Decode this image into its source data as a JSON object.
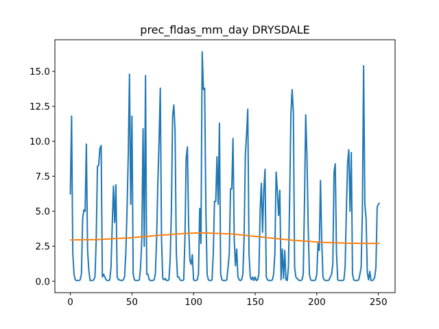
{
  "chart_data": {
    "type": "line",
    "title": "prec_fldas_mm_day DRYSDALE",
    "x": [
      0,
      1,
      2,
      3,
      4,
      5,
      6,
      7,
      8,
      9,
      10,
      11,
      12,
      13,
      14,
      15,
      16,
      17,
      18,
      19,
      20,
      21,
      22,
      23,
      24,
      25,
      26,
      27,
      28,
      29,
      30,
      31,
      32,
      33,
      34,
      35,
      36,
      37,
      38,
      39,
      40,
      41,
      42,
      43,
      44,
      45,
      46,
      47,
      48,
      49,
      50,
      51,
      52,
      53,
      54,
      55,
      56,
      57,
      58,
      59,
      60,
      61,
      62,
      63,
      64,
      65,
      66,
      67,
      68,
      69,
      70,
      71,
      72,
      73,
      74,
      75,
      76,
      77,
      78,
      79,
      80,
      81,
      82,
      83,
      84,
      85,
      86,
      87,
      88,
      89,
      90,
      91,
      92,
      93,
      94,
      95,
      96,
      97,
      98,
      99,
      100,
      101,
      102,
      103,
      104,
      105,
      106,
      107,
      108,
      109,
      110,
      111,
      112,
      113,
      114,
      115,
      116,
      117,
      118,
      119,
      120,
      121,
      122,
      123,
      124,
      125,
      126,
      127,
      128,
      129,
      130,
      131,
      132,
      133,
      134,
      135,
      136,
      137,
      138,
      139,
      140,
      141,
      142,
      143,
      144,
      145,
      146,
      147,
      148,
      149,
      150,
      151,
      152,
      153,
      154,
      155,
      156,
      157,
      158,
      159,
      160,
      161,
      162,
      163,
      164,
      165,
      166,
      167,
      168,
      169,
      170,
      171,
      172,
      173,
      174,
      175,
      176,
      177,
      178,
      179,
      180,
      181,
      182,
      183,
      184,
      185,
      186,
      187,
      188,
      189,
      190,
      191,
      192,
      193,
      194,
      195,
      196,
      197,
      198,
      199,
      200,
      201,
      202,
      203,
      204,
      205,
      206,
      207,
      208,
      209,
      210,
      211,
      212,
      213,
      214,
      215,
      216,
      217,
      218,
      219,
      220,
      221,
      222,
      223,
      224,
      225,
      226,
      227,
      228,
      229,
      230,
      231,
      232,
      233,
      234,
      235,
      236,
      237,
      238,
      239,
      240,
      241,
      242,
      243,
      244,
      245,
      246,
      247,
      248,
      249,
      250,
      251
    ],
    "series": [
      {
        "color": "#1f77b4",
        "values": [
          6.2,
          11.8,
          2.0,
          0.5,
          0.1,
          0.05,
          0.05,
          0.05,
          0.1,
          0.5,
          4.5,
          5.1,
          5.0,
          9.8,
          2.2,
          0.8,
          0.05,
          0.05,
          0.05,
          0.1,
          0.3,
          3.0,
          8.2,
          8.3,
          9.5,
          9.7,
          0.3,
          0.5,
          0.3,
          0.1,
          0.05,
          0.05,
          0.1,
          1.0,
          4.0,
          6.8,
          4.2,
          6.9,
          0.3,
          0.1,
          0.1,
          0.05,
          0.05,
          0.1,
          0.3,
          2.0,
          5.0,
          9.0,
          14.8,
          5.5,
          11.8,
          0.5,
          0.1,
          0.05,
          0.05,
          0.05,
          0.1,
          1.0,
          3.0,
          10.9,
          2.5,
          14.7,
          0.5,
          0.5,
          0.1,
          0.05,
          0.05,
          0.05,
          0.1,
          0.5,
          3.0,
          7.0,
          10.0,
          13.8,
          3.0,
          0.2,
          0.1,
          0.2,
          0.05,
          0.05,
          0.1,
          1.5,
          5.0,
          11.8,
          12.6,
          10.7,
          2.0,
          0.3,
          0.3,
          0.1,
          0.05,
          0.05,
          0.1,
          3.0,
          8.8,
          9.6,
          4.0,
          1.5,
          1.2,
          1.9,
          0.1,
          0.05,
          0.05,
          0.1,
          0.5,
          5.2,
          2.7,
          16.4,
          13.7,
          13.8,
          5.0,
          0.5,
          0.1,
          0.05,
          0.05,
          0.1,
          2.0,
          5.7,
          5.7,
          8.9,
          5.5,
          11.3,
          0.5,
          0.1,
          0.05,
          0.05,
          0.05,
          0.1,
          1.0,
          2.0,
          6.6,
          6.6,
          10.2,
          3.0,
          1.1,
          2.3,
          0.3,
          0.1,
          0.05,
          0.1,
          0.5,
          3.0,
          9.0,
          10.5,
          12.3,
          2.0,
          0.3,
          0.1,
          0.3,
          0.05,
          0.3,
          0.05,
          0.1,
          0.5,
          5.0,
          7.0,
          3.5,
          6.5,
          8.0,
          0.3,
          0.1,
          0.05,
          0.05,
          0.05,
          0.1,
          0.5,
          2.0,
          7.8,
          6.5,
          4.7,
          6.5,
          0.1,
          2.3,
          0.2,
          2.2,
          0.1,
          0.05,
          1.0,
          6.0,
          12.0,
          13.7,
          12.0,
          1.0,
          0.3,
          0.2,
          0.1,
          0.05,
          0.05,
          0.1,
          0.5,
          5.5,
          11.9,
          9.0,
          4.0,
          0.5,
          0.1,
          0.05,
          0.05,
          0.05,
          0.1,
          0.5,
          2.7,
          2.2,
          7.2,
          3.0,
          0.3,
          0.1,
          0.05,
          0.05,
          0.05,
          0.1,
          0.3,
          0.5,
          1.2,
          7.8,
          8.4,
          2.0,
          0.1,
          0.05,
          0.05,
          0.05,
          0.05,
          0.1,
          1.0,
          5.0,
          8.5,
          9.4,
          5.0,
          9.2,
          0.5,
          0.1,
          0.05,
          0.05,
          0.05,
          0.1,
          0.5,
          1.0,
          5.0,
          15.4,
          5.5,
          4.5,
          0.6,
          0.1,
          0.7,
          0.05,
          0.05,
          0.1,
          0.3,
          1.0,
          5.3,
          5.5,
          5.6
        ]
      },
      {
        "color": "#ff7f0e",
        "values": [
          2.95,
          2.95,
          2.95,
          2.95,
          2.96,
          2.96,
          2.96,
          2.96,
          2.96,
          2.96,
          2.96,
          2.96,
          2.97,
          2.97,
          2.97,
          2.97,
          2.97,
          2.97,
          2.97,
          2.97,
          2.98,
          2.98,
          2.98,
          2.98,
          2.98,
          2.99,
          2.99,
          3.0,
          3.0,
          3.01,
          3.01,
          3.02,
          3.02,
          3.03,
          3.03,
          3.04,
          3.04,
          3.05,
          3.05,
          3.06,
          3.06,
          3.07,
          3.07,
          3.08,
          3.08,
          3.09,
          3.09,
          3.1,
          3.1,
          3.11,
          3.12,
          3.12,
          3.13,
          3.14,
          3.15,
          3.15,
          3.16,
          3.17,
          3.18,
          3.18,
          3.19,
          3.2,
          3.21,
          3.21,
          3.22,
          3.23,
          3.24,
          3.24,
          3.25,
          3.26,
          3.27,
          3.27,
          3.28,
          3.29,
          3.29,
          3.3,
          3.31,
          3.31,
          3.32,
          3.32,
          3.33,
          3.34,
          3.34,
          3.35,
          3.36,
          3.36,
          3.37,
          3.37,
          3.38,
          3.39,
          3.39,
          3.4,
          3.41,
          3.41,
          3.42,
          3.42,
          3.43,
          3.43,
          3.43,
          3.43,
          3.44,
          3.44,
          3.44,
          3.44,
          3.44,
          3.45,
          3.45,
          3.45,
          3.45,
          3.45,
          3.45,
          3.44,
          3.44,
          3.44,
          3.43,
          3.43,
          3.43,
          3.42,
          3.42,
          3.42,
          3.41,
          3.41,
          3.41,
          3.4,
          3.4,
          3.4,
          3.39,
          3.39,
          3.39,
          3.38,
          3.38,
          3.38,
          3.37,
          3.36,
          3.35,
          3.34,
          3.33,
          3.32,
          3.31,
          3.31,
          3.3,
          3.29,
          3.28,
          3.27,
          3.26,
          3.25,
          3.24,
          3.23,
          3.22,
          3.21,
          3.2,
          3.2,
          3.19,
          3.18,
          3.17,
          3.16,
          3.15,
          3.14,
          3.13,
          3.12,
          3.11,
          3.1,
          3.09,
          3.09,
          3.08,
          3.07,
          3.06,
          3.05,
          3.04,
          3.03,
          3.02,
          3.01,
          3.0,
          2.99,
          2.98,
          2.98,
          2.97,
          2.96,
          2.95,
          2.94,
          2.93,
          2.92,
          2.92,
          2.91,
          2.91,
          2.9,
          2.89,
          2.89,
          2.88,
          2.87,
          2.87,
          2.86,
          2.86,
          2.85,
          2.84,
          2.84,
          2.83,
          2.82,
          2.82,
          2.81,
          2.81,
          2.8,
          2.79,
          2.79,
          2.78,
          2.78,
          2.77,
          2.77,
          2.77,
          2.76,
          2.76,
          2.76,
          2.76,
          2.75,
          2.75,
          2.75,
          2.74,
          2.74,
          2.74,
          2.73,
          2.73,
          2.73,
          2.73,
          2.72,
          2.72,
          2.72,
          2.71,
          2.71,
          2.71,
          2.71,
          2.71,
          2.71,
          2.71,
          2.71,
          2.71,
          2.71,
          2.71,
          2.71,
          2.71,
          2.71,
          2.7,
          2.7,
          2.7,
          2.7,
          2.7,
          2.7,
          2.7,
          2.7,
          2.7,
          2.7,
          2.7,
          2.7
        ]
      }
    ],
    "xlim": [
      -12.55,
      263.55
    ],
    "xticks": [
      0,
      50,
      100,
      150,
      200,
      250
    ],
    "ylim": [
      -0.82,
      17.26
    ],
    "yticks": [
      {
        "value": 0,
        "label": "0.0"
      },
      2.5,
      {
        "value": 5,
        "label": "5.0"
      },
      7.5,
      {
        "value": 10,
        "label": "10.0"
      },
      12.5,
      {
        "value": 15,
        "label": "15.0"
      }
    ]
  }
}
